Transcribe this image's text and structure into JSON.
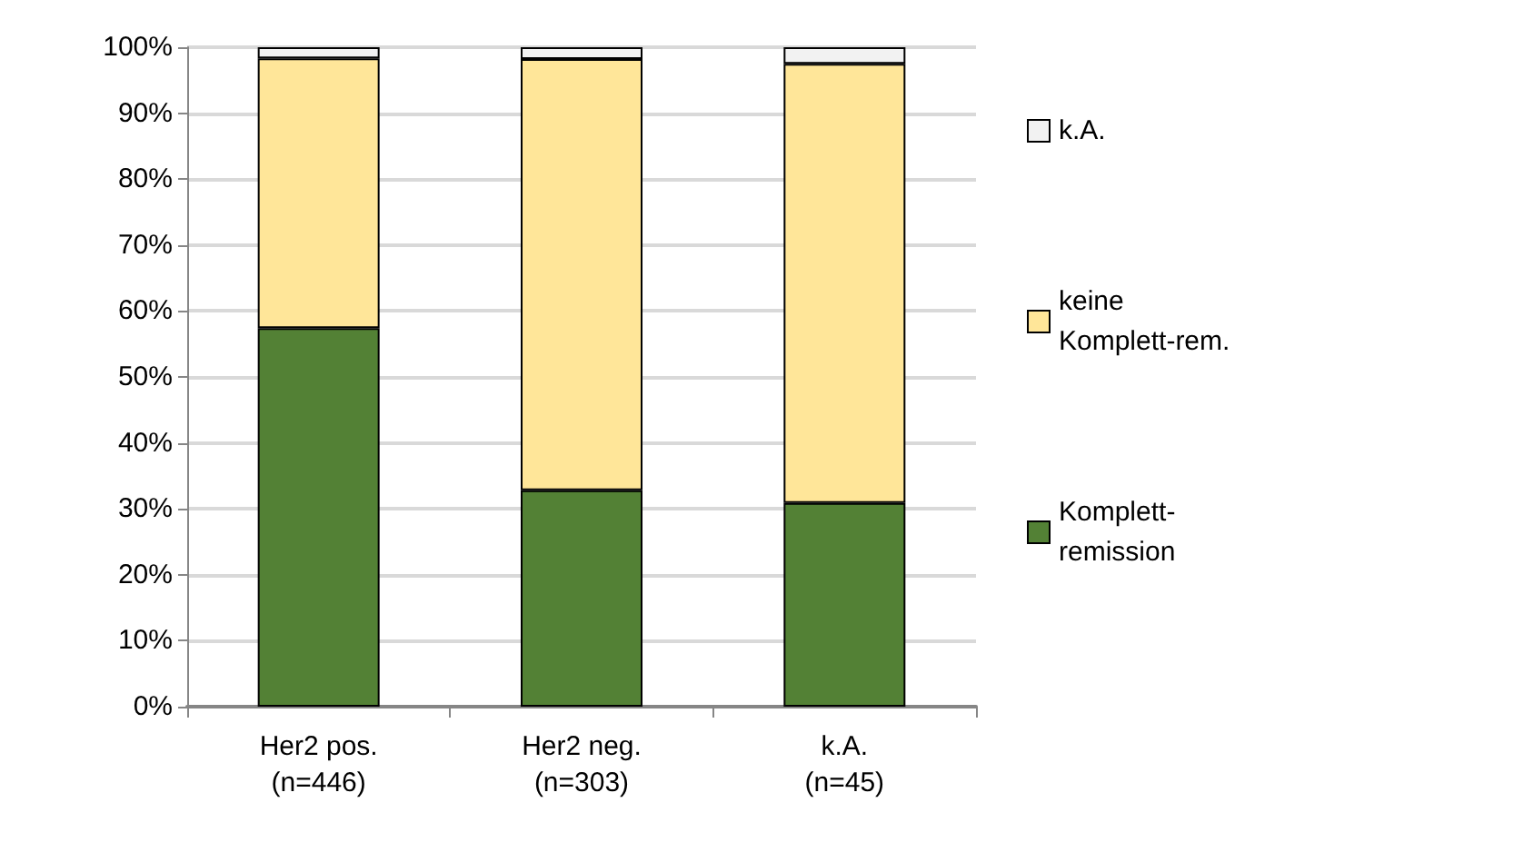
{
  "chart_data": {
    "type": "bar",
    "stacked": true,
    "categories": [
      "Her2 pos.\n(n=446)",
      "Her2 neg.\n(n=303)",
      "k.A.\n(n=45)"
    ],
    "series": [
      {
        "name": "Komplett-\nremission",
        "color": "#538135",
        "values": [
          57.4,
          32.8,
          30.9
        ]
      },
      {
        "name": "keine\nKomplett-rem.",
        "color": "#ffe699",
        "values": [
          40.9,
          65.4,
          66.6
        ]
      },
      {
        "name": "k.A.",
        "color": "#f2f2f2",
        "values": [
          1.7,
          1.8,
          2.5
        ]
      }
    ],
    "ylim": [
      0,
      100
    ],
    "yticks": [
      {
        "value": 0,
        "label": "0%"
      },
      {
        "value": 10,
        "label": "10%"
      },
      {
        "value": 20,
        "label": "20%"
      },
      {
        "value": 30,
        "label": "30%"
      },
      {
        "value": 40,
        "label": "40%"
      },
      {
        "value": 50,
        "label": "50%"
      },
      {
        "value": 60,
        "label": "60%"
      },
      {
        "value": 70,
        "label": "70%"
      },
      {
        "value": 80,
        "label": "80%"
      },
      {
        "value": 90,
        "label": "90%"
      },
      {
        "value": 100,
        "label": "100%"
      }
    ],
    "grid": "y",
    "legend": "right"
  }
}
